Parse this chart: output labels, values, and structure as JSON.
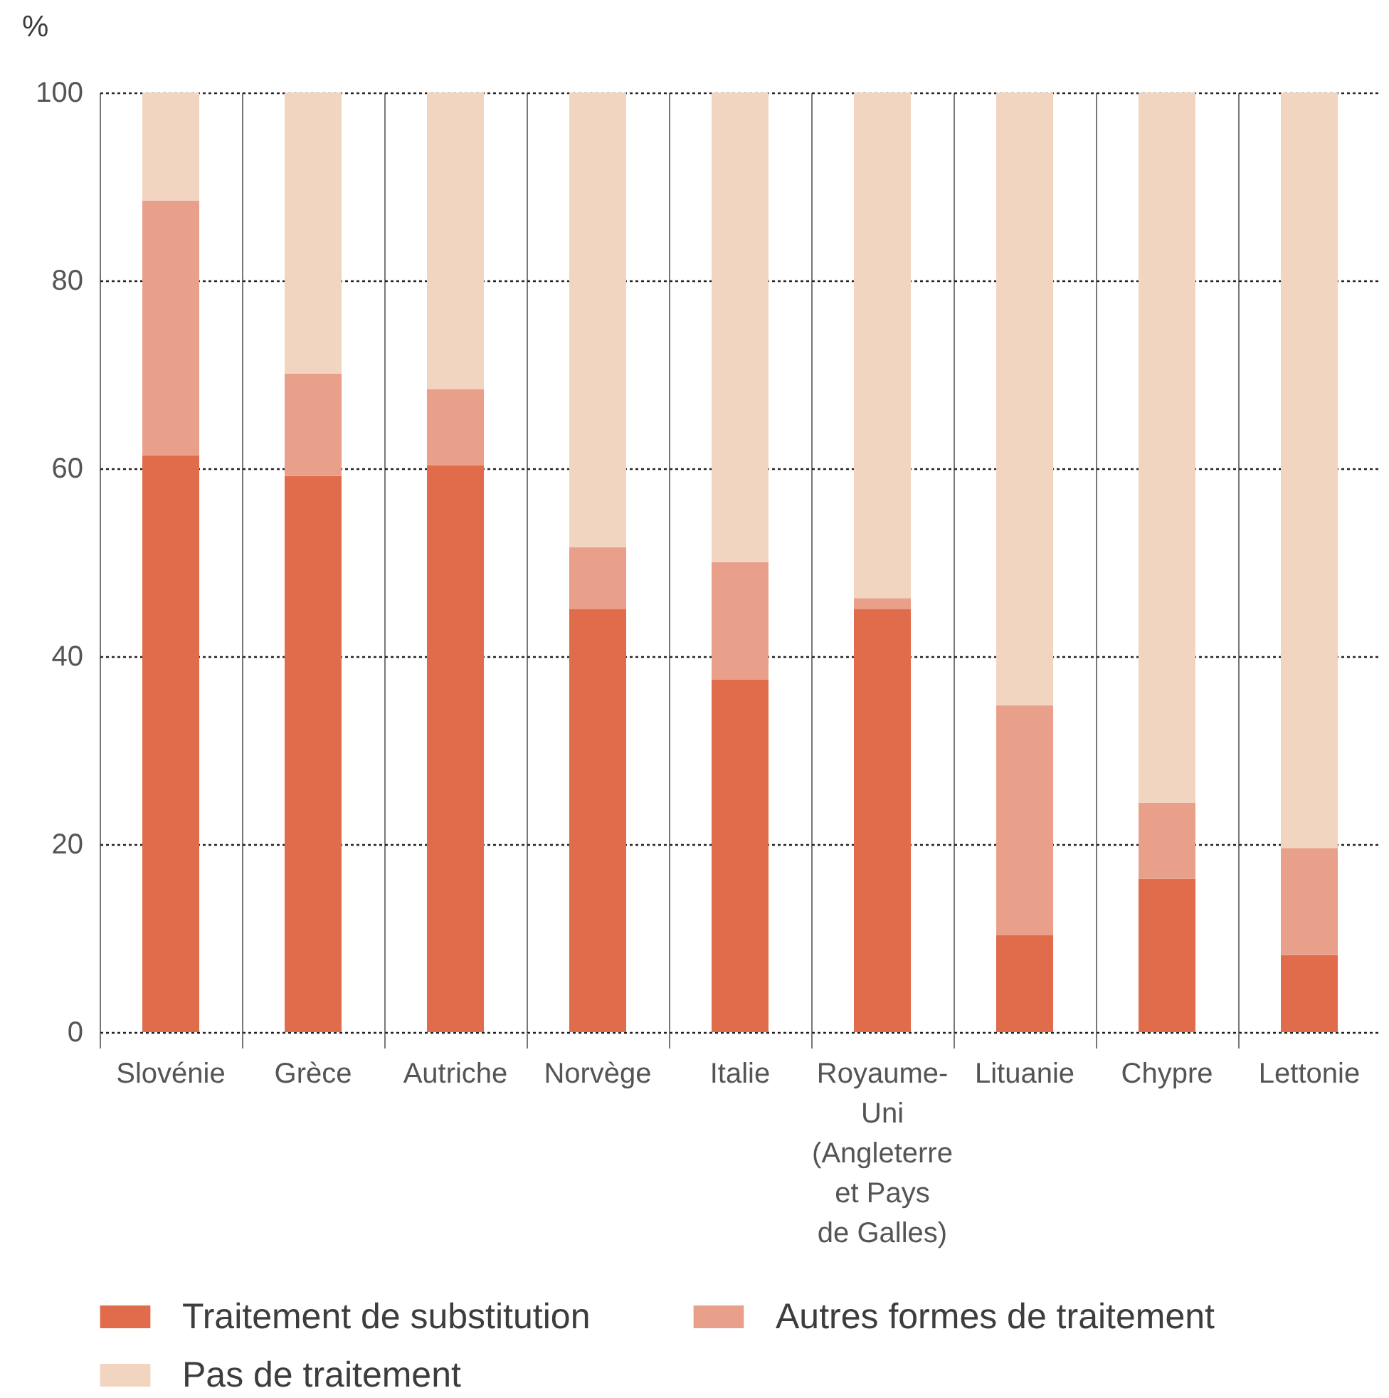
{
  "chart_data": {
    "type": "bar",
    "stacked": true,
    "ylabel": "%",
    "categories": [
      "Slovénie",
      "Grèce",
      "Autriche",
      "Norvège",
      "Italie",
      "Royaume-Uni (Angleterre et Pays de Galles)",
      "Lituanie",
      "Chypre",
      "Lettonie"
    ],
    "series": [
      {
        "name": "Traitement de substitution",
        "color": "#e06c4c",
        "values": [
          61.4,
          59.2,
          60.3,
          45.0,
          37.5,
          45.0,
          10.3,
          16.3,
          8.2
        ]
      },
      {
        "name": "Autres formes de traitement",
        "color": "#e9a08b",
        "values": [
          27.1,
          10.9,
          8.1,
          6.6,
          12.5,
          1.2,
          24.5,
          8.1,
          11.4
        ]
      },
      {
        "name": "Pas de traitement",
        "color": "#f2d5c0",
        "values": [
          11.5,
          29.9,
          31.6,
          48.4,
          50.0,
          53.8,
          65.2,
          75.6,
          80.4
        ]
      }
    ],
    "ylim": [
      0,
      100
    ],
    "yticks": [
      0,
      20,
      40,
      60,
      80,
      100
    ],
    "grid": true,
    "legend": "bottom"
  }
}
